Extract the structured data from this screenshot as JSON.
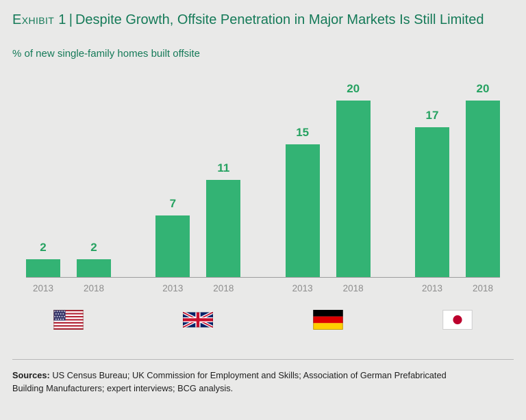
{
  "colors": {
    "background": "#e9e9e8",
    "title_teal": "#157a58",
    "bar_green": "#33b374",
    "bar_label_green": "#26a261"
  },
  "header": {
    "exhibit_label": "Exhibit 1",
    "separator": "|",
    "title": "Despite Growth, Offsite Penetration in Major Markets Is Still Limited"
  },
  "subtitle": "% of new single-family homes built offsite",
  "chart_data": {
    "type": "bar",
    "title": "% of new single-family homes built offsite",
    "unit": "%",
    "ylim": [
      0,
      20
    ],
    "grid": false,
    "legend": false,
    "categories": [
      "United States",
      "United Kingdom",
      "Germany",
      "Japan"
    ],
    "series": [
      {
        "name": "2013",
        "values": [
          2,
          7,
          15,
          17
        ]
      },
      {
        "name": "2018",
        "values": [
          2,
          11,
          20,
          20
        ]
      }
    ],
    "groups": [
      {
        "id": "us",
        "country": "United States",
        "flag": "us-flag",
        "bars": [
          {
            "year": "2013",
            "value": 2
          },
          {
            "year": "2018",
            "value": 2
          }
        ]
      },
      {
        "id": "uk",
        "country": "United Kingdom",
        "flag": "uk-flag",
        "bars": [
          {
            "year": "2013",
            "value": 7
          },
          {
            "year": "2018",
            "value": 11
          }
        ]
      },
      {
        "id": "germany",
        "country": "Germany",
        "flag": "germany-flag",
        "bars": [
          {
            "year": "2013",
            "value": 15
          },
          {
            "year": "2018",
            "value": 20
          }
        ]
      },
      {
        "id": "japan",
        "country": "Japan",
        "flag": "japan-flag",
        "bars": [
          {
            "year": "2013",
            "value": 17
          },
          {
            "year": "2018",
            "value": 20
          }
        ]
      }
    ]
  },
  "footer": {
    "sources_label": "Sources:",
    "sources_text": " US Census Bureau; UK Commission for Employment and Skills; Association of German Prefabricated Building Manufacturers; expert interviews; BCG analysis."
  }
}
